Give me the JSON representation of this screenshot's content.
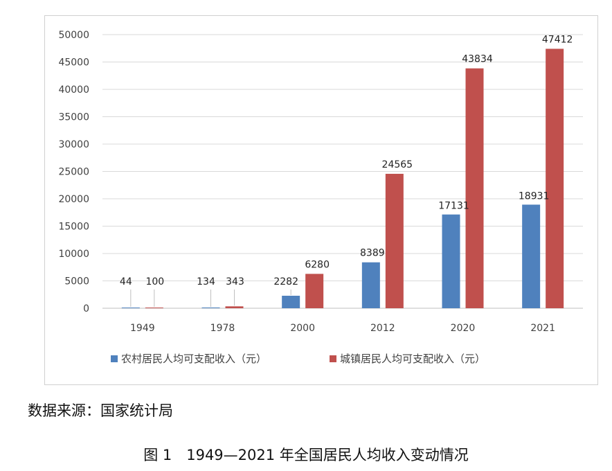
{
  "chart_data": {
    "type": "bar",
    "categories": [
      "1949",
      "1978",
      "2000",
      "2012",
      "2020",
      "2021"
    ],
    "series": [
      {
        "name": "农村居民人均可支配收入（元）",
        "values": [
          44,
          134,
          2282,
          8389,
          17131,
          18931
        ],
        "color": "#4f81bd"
      },
      {
        "name": "城镇居民人均可支配收入（元）",
        "values": [
          100,
          343,
          6280,
          24565,
          43834,
          47412
        ],
        "color": "#c0504d"
      }
    ],
    "ylim": [
      0,
      50000
    ],
    "yticks": [
      "0",
      "5000",
      "10000",
      "15000",
      "20000",
      "25000",
      "30000",
      "35000",
      "40000",
      "45000",
      "50000"
    ],
    "grid": true,
    "legend_position": "bottom"
  },
  "source_text": "数据来源：国家统计局",
  "caption_text": "图 1　1949—2021 年全国居民人均收入变动情况"
}
